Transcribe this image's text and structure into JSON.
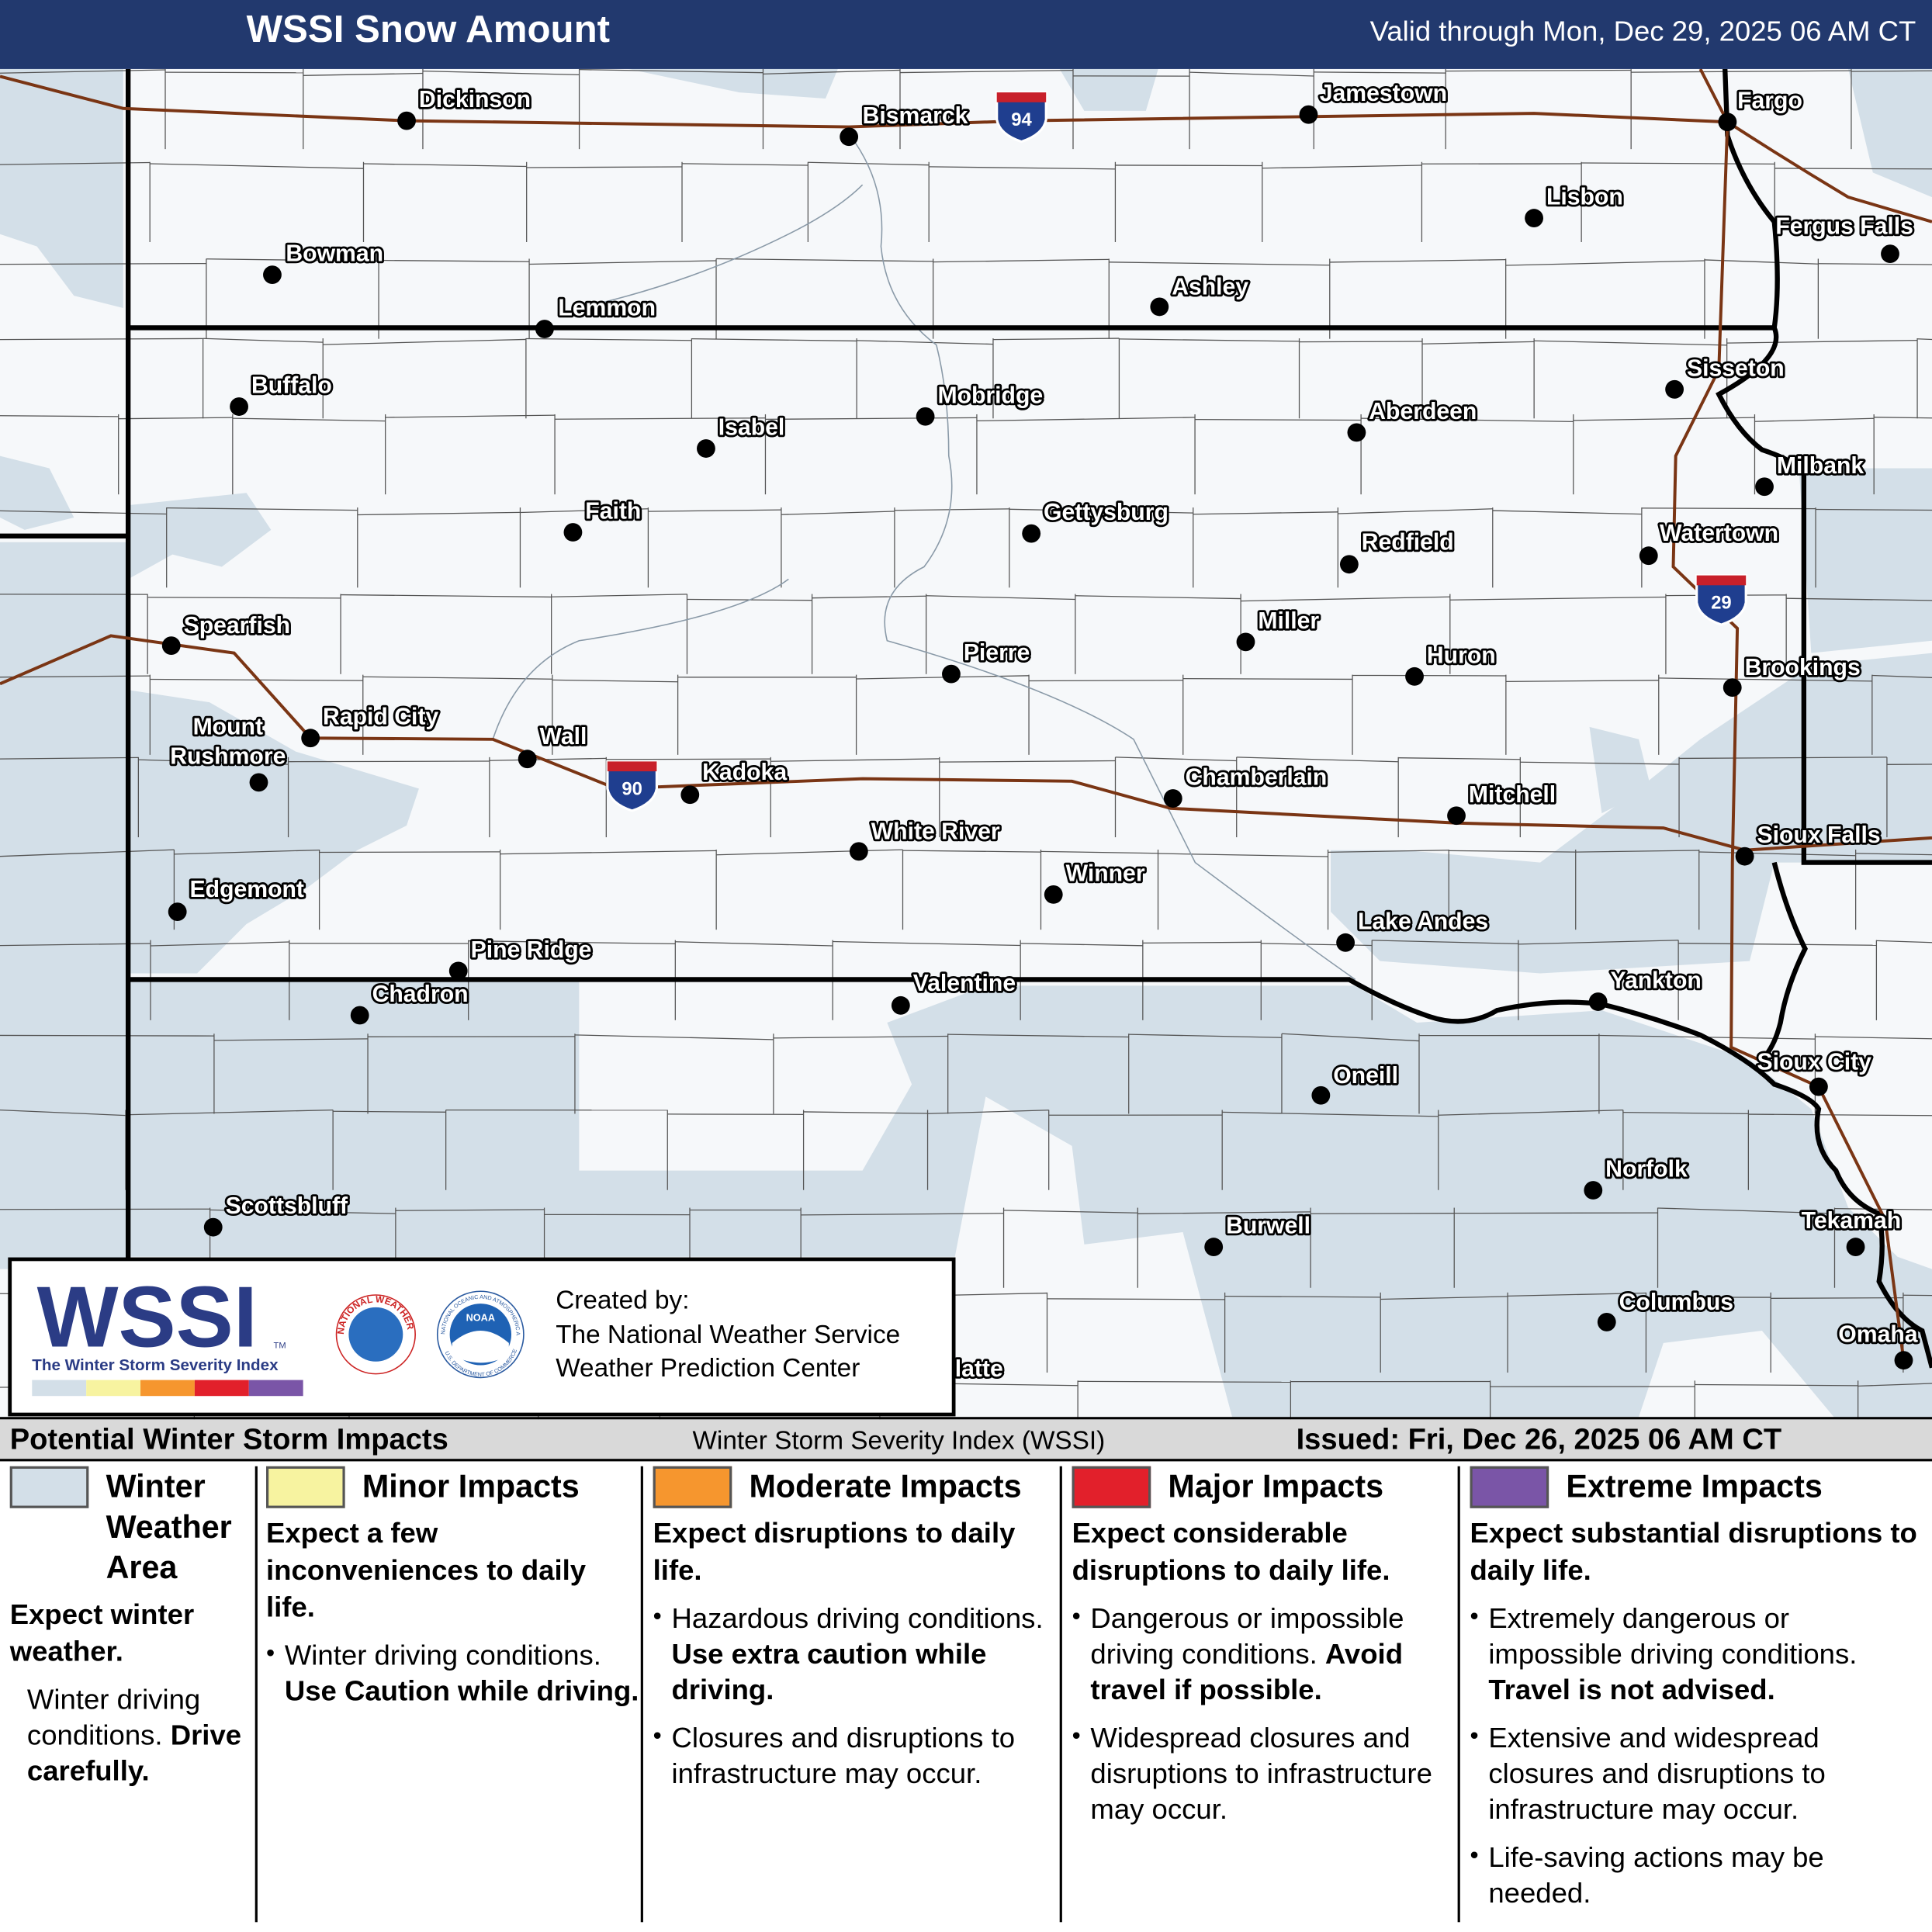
{
  "header": {
    "title": "WSSI Snow Amount",
    "valid": "Valid through Mon, Dec 29, 2025 06 AM CT"
  },
  "map": {
    "cities": [
      "Dickinson",
      "Bismarck",
      "Jamestown",
      "Fargo",
      "Lisbon",
      "Fergus Falls",
      "Bowman",
      "Ashley",
      "Lemmon",
      "Sisseton",
      "Buffalo",
      "Mobridge",
      "Aberdeen",
      "Isabel",
      "Milbank",
      "Faith",
      "Gettysburg",
      "Redfield",
      "Watertown",
      "Spearfish",
      "Miller",
      "Pierre",
      "Huron",
      "Brookings",
      "Rapid City",
      "Mount Rushmore",
      "Wall",
      "Kadoka",
      "Chamberlain",
      "Mitchell",
      "Sioux Falls",
      "White River",
      "Winner",
      "Edgemont",
      "Lake Andes",
      "Pine Ridge",
      "Yankton",
      "Chadron",
      "Valentine",
      "Sioux City",
      "Oneill",
      "Norfolk",
      "Scottsbluff",
      "Tekamah",
      "Burwell",
      "Columbus",
      "Omaha",
      "latte"
    ],
    "interstates": [
      "94",
      "90",
      "29"
    ],
    "winter_area_color": "#d3dfe8"
  },
  "logo": {
    "wssi": "WSSI",
    "tm": "TM",
    "subtitle": "The Winter Storm Severity Index",
    "nws": "NATIONAL WEATHER SERVICE",
    "noaa": "NOAA",
    "noaa_ring": "NATIONAL OCEANIC AND ATMOSPHERIC ADMINISTRATION",
    "commerce": "U.S. DEPARTMENT OF COMMERCE",
    "created_by": [
      "Created by:",
      "The National Weather Service",
      "Weather Prediction Center"
    ]
  },
  "legend": {
    "title": "Potential Winter Storm Impacts",
    "index": "Winter Storm Severity Index (WSSI)",
    "issued": "Issued: Fri, Dec 26, 2025 06 AM CT",
    "categories": [
      {
        "name": "Winter Weather Area",
        "color": "#d3dfe8",
        "bulleted": false,
        "summary": "Expect winter weather.",
        "details": [
          {
            "text": "Winter driving conditions.",
            "bold": "Drive carefully."
          }
        ]
      },
      {
        "name": "Minor Impacts",
        "color": "#f7f3a0",
        "bulleted": true,
        "summary": "Expect a few inconveniences to daily life.",
        "details": [
          {
            "text": "Winter driving conditions.",
            "bold": "Use Caution while driving."
          }
        ]
      },
      {
        "name": "Moderate Impacts",
        "color": "#f6962e",
        "bulleted": true,
        "summary": "Expect disruptions to daily life.",
        "details": [
          {
            "text": "Hazardous driving conditions.",
            "bold": "Use extra caution while driving."
          },
          {
            "text": "Closures and disruptions to infrastructure may occur."
          }
        ]
      },
      {
        "name": "Major Impacts",
        "color": "#e2202b",
        "bulleted": true,
        "summary": "Expect considerable disruptions to daily life.",
        "details": [
          {
            "text": "Dangerous or impossible driving conditions.",
            "bold": "Avoid travel if possible."
          },
          {
            "text": "Widespread closures and disruptions to infrastructure may occur."
          }
        ]
      },
      {
        "name": "Extreme Impacts",
        "color": "#7a55a7",
        "bulleted": true,
        "summary": "Expect substantial disruptions to daily life.",
        "details": [
          {
            "text": "Extremely dangerous or impossible driving conditions.",
            "bold": "Travel is not advised."
          },
          {
            "text": "Extensive and widespread closures and disruptions to infrastructure may occur."
          },
          {
            "text": "Life-saving actions may be needed."
          }
        ]
      }
    ]
  }
}
